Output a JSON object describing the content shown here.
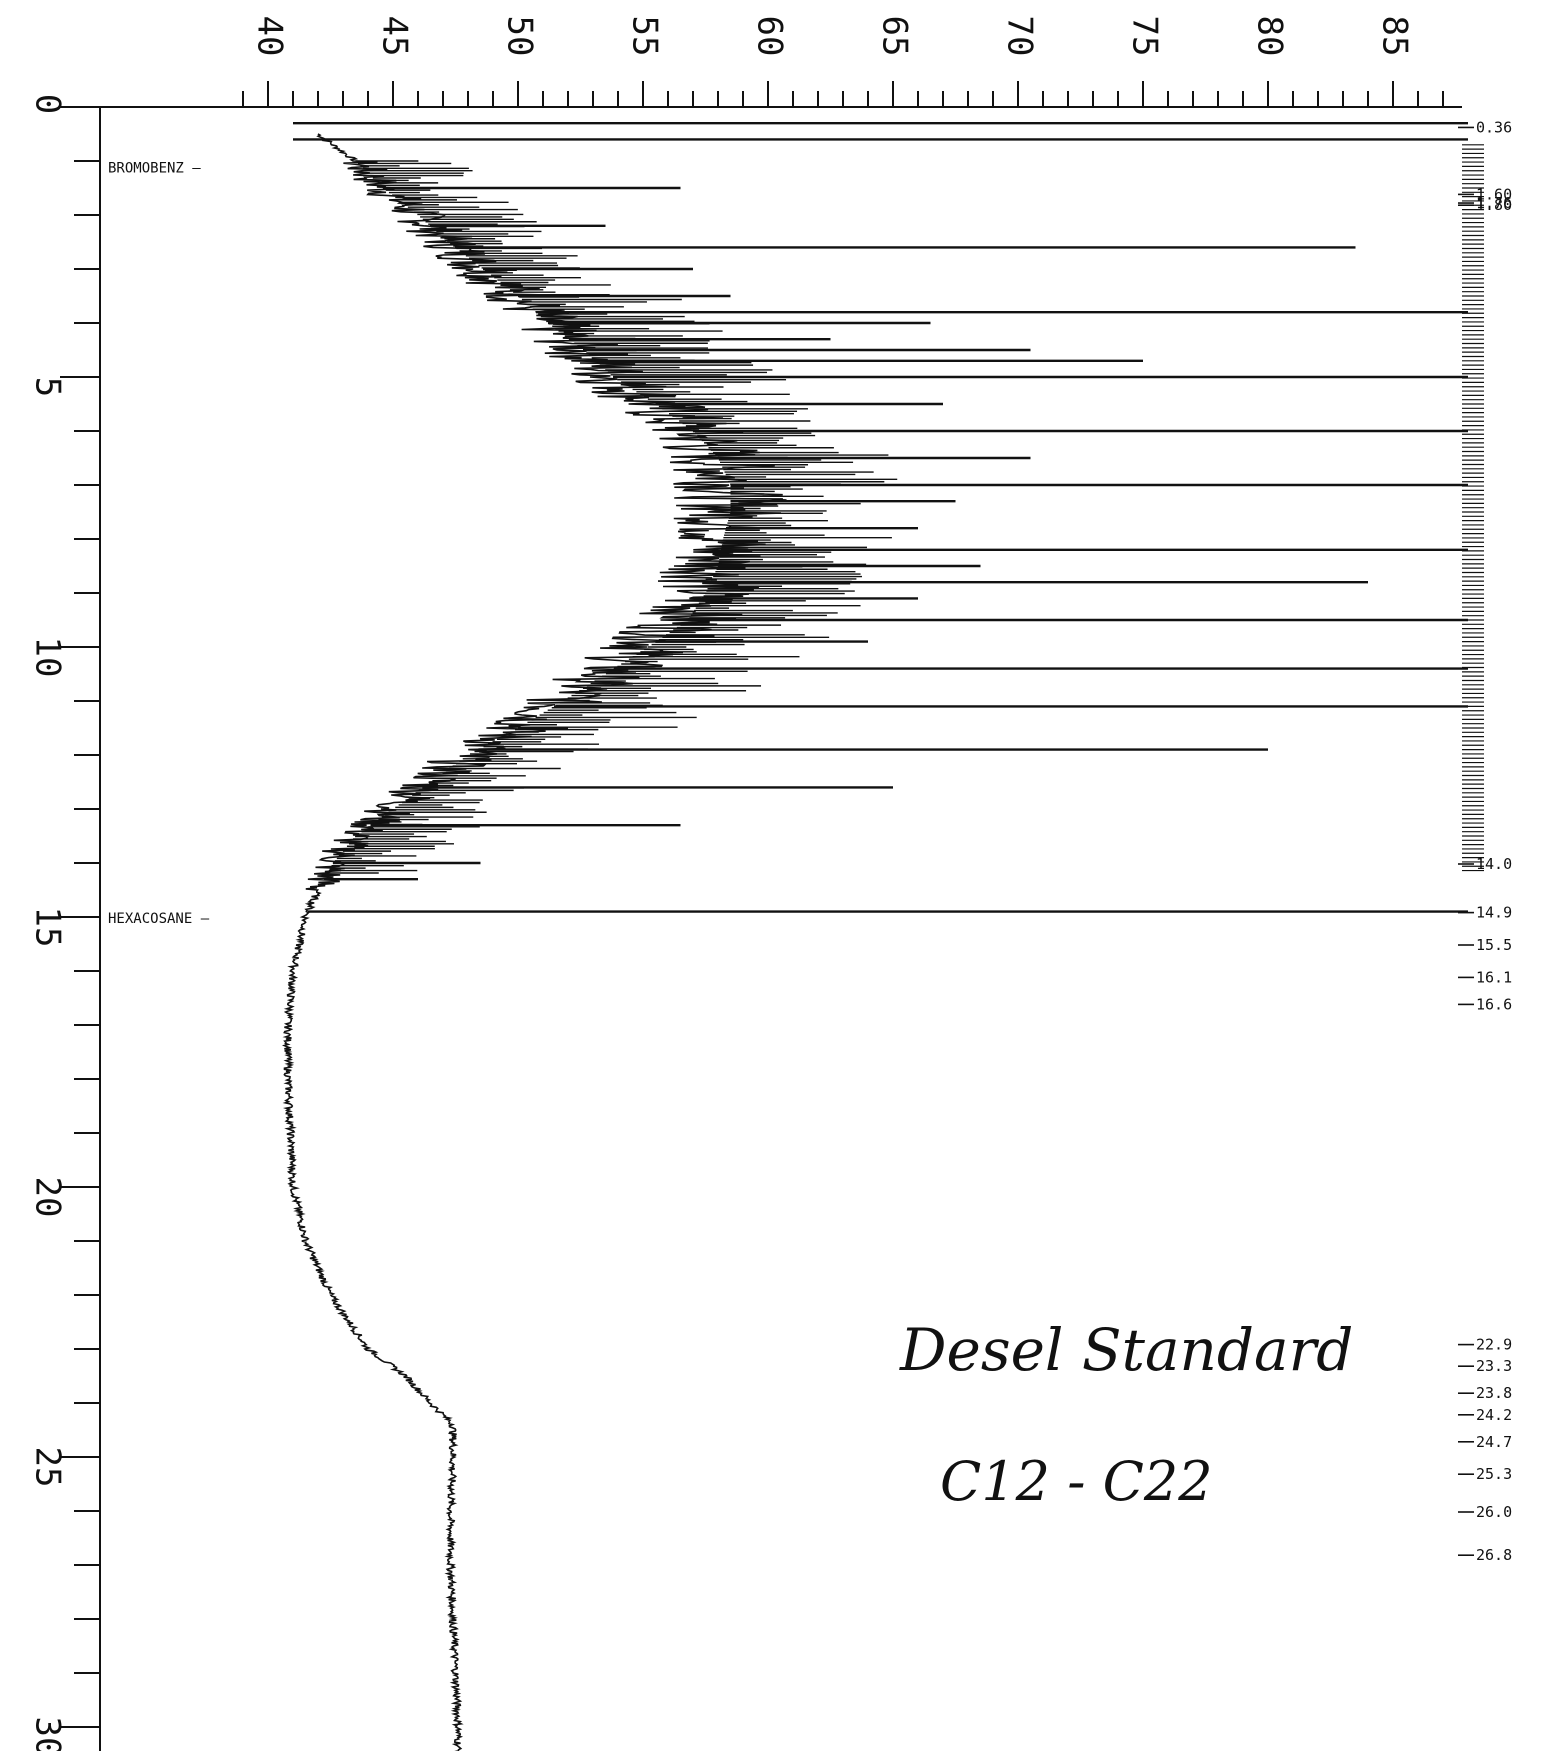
{
  "chart_data": {
    "type": "line",
    "title": "",
    "xlabel": "",
    "ylabel": "",
    "orientation": "time-vertical",
    "response_axis": {
      "ticks": [
        "40",
        "45",
        "50",
        "55",
        "60",
        "65",
        "70",
        "75",
        "80",
        "85"
      ],
      "range": [
        38,
        88
      ]
    },
    "time_axis": {
      "ticks": [
        "0",
        "5",
        "10",
        "15",
        "20",
        "25",
        "30"
      ],
      "range": [
        0,
        31
      ]
    },
    "markers": [
      {
        "label": "BROMOBENZ",
        "time": 1.1
      },
      {
        "label": "HEXACOSANE",
        "time": 15.0
      }
    ],
    "retention_times": [
      "0.36",
      "1.76",
      "1.60",
      "1.80",
      "14.0",
      "14.9",
      "15.5",
      "16.1",
      "16.6",
      "22.9",
      "23.3",
      "23.8",
      "24.2",
      "24.7",
      "25.3",
      "26.0",
      "26.8"
    ],
    "annotation_lines": [
      "Desel Standard",
      "C12 - C22"
    ],
    "baseline_profile": [
      [
        0.5,
        42.0
      ],
      [
        1.0,
        43.5
      ],
      [
        1.5,
        44.6
      ],
      [
        2.0,
        46.0
      ],
      [
        2.5,
        47.2
      ],
      [
        3.0,
        48.6
      ],
      [
        3.5,
        50.0
      ],
      [
        4.0,
        51.2
      ],
      [
        4.5,
        52.6
      ],
      [
        5.0,
        53.8
      ],
      [
        5.5,
        55.5
      ],
      [
        6.0,
        57.0
      ],
      [
        6.5,
        58.0
      ],
      [
        7.0,
        58.5
      ],
      [
        7.5,
        58.5
      ],
      [
        8.0,
        58.2
      ],
      [
        8.5,
        58.0
      ],
      [
        9.0,
        57.5
      ],
      [
        9.5,
        56.8
      ],
      [
        10.0,
        55.2
      ],
      [
        10.5,
        53.5
      ],
      [
        11.0,
        51.8
      ],
      [
        11.5,
        50.0
      ],
      [
        12.0,
        48.0
      ],
      [
        12.5,
        46.5
      ],
      [
        13.0,
        45.0
      ],
      [
        13.5,
        43.5
      ],
      [
        14.0,
        42.6
      ],
      [
        14.5,
        42.0
      ],
      [
        15.0,
        41.5
      ],
      [
        16.0,
        41.0
      ],
      [
        17.0,
        40.8
      ],
      [
        18.0,
        40.8
      ],
      [
        19.0,
        40.9
      ],
      [
        20.0,
        41.0
      ],
      [
        21.0,
        41.5
      ],
      [
        22.0,
        42.5
      ],
      [
        23.0,
        44.0
      ],
      [
        23.5,
        45.5
      ],
      [
        24.0,
        46.5
      ],
      [
        24.4,
        47.4
      ],
      [
        25.0,
        47.4
      ],
      [
        26.0,
        47.3
      ],
      [
        27.0,
        47.3
      ],
      [
        28.0,
        47.4
      ],
      [
        29.0,
        47.5
      ],
      [
        30.0,
        47.6
      ],
      [
        31.0,
        47.6
      ]
    ],
    "peaks": [
      {
        "time": 0.3,
        "value": 88.0
      },
      {
        "time": 0.6,
        "value": 88.0
      },
      {
        "time": 1.5,
        "value": 56.5
      },
      {
        "time": 2.2,
        "value": 53.5
      },
      {
        "time": 2.6,
        "value": 83.5
      },
      {
        "time": 3.0,
        "value": 57.0
      },
      {
        "time": 3.5,
        "value": 58.5
      },
      {
        "time": 3.8,
        "value": 88.0
      },
      {
        "time": 4.0,
        "value": 66.5
      },
      {
        "time": 4.3,
        "value": 62.5
      },
      {
        "time": 4.5,
        "value": 70.5
      },
      {
        "time": 4.7,
        "value": 75.0
      },
      {
        "time": 5.0,
        "value": 88.0
      },
      {
        "time": 5.5,
        "value": 67.0
      },
      {
        "time": 6.0,
        "value": 88.0
      },
      {
        "time": 6.5,
        "value": 70.5
      },
      {
        "time": 7.0,
        "value": 88.0
      },
      {
        "time": 7.3,
        "value": 67.5
      },
      {
        "time": 7.8,
        "value": 66.0
      },
      {
        "time": 8.2,
        "value": 88.0
      },
      {
        "time": 8.5,
        "value": 68.5
      },
      {
        "time": 8.8,
        "value": 84.0
      },
      {
        "time": 9.1,
        "value": 66.0
      },
      {
        "time": 9.5,
        "value": 88.0
      },
      {
        "time": 9.9,
        "value": 64.0
      },
      {
        "time": 10.4,
        "value": 88.0
      },
      {
        "time": 11.1,
        "value": 88.0
      },
      {
        "time": 11.5,
        "value": 52.0
      },
      {
        "time": 11.9,
        "value": 80.0
      },
      {
        "time": 12.6,
        "value": 65.0
      },
      {
        "time": 13.3,
        "value": 56.5
      },
      {
        "time": 14.0,
        "value": 48.5
      },
      {
        "time": 14.3,
        "value": 46.0
      },
      {
        "time": 14.9,
        "value": 88.0
      }
    ],
    "grid": false,
    "legend": "none"
  }
}
